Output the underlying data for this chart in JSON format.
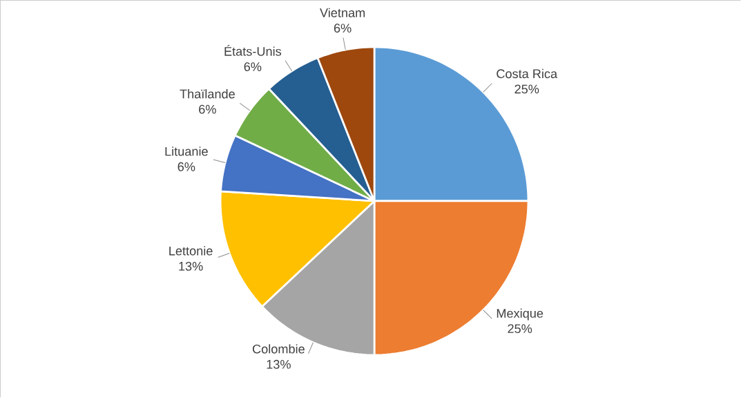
{
  "chart_data": {
    "type": "pie",
    "categories": [
      "Costa Rica",
      "Mexique",
      "Colombie",
      "Lettonie",
      "Lituanie",
      "Thaïlande",
      "États-Unis",
      "Vietnam"
    ],
    "values": [
      25,
      25,
      13,
      13,
      6,
      6,
      6,
      6
    ],
    "value_labels": [
      "25%",
      "25%",
      "13%",
      "13%",
      "6%",
      "6%",
      "6%",
      "6%"
    ],
    "colors": [
      "#5b9bd5",
      "#ed7d31",
      "#a5a5a5",
      "#ffc000",
      "#4472c4",
      "#70ad47",
      "#255e91",
      "#9e480e"
    ]
  }
}
